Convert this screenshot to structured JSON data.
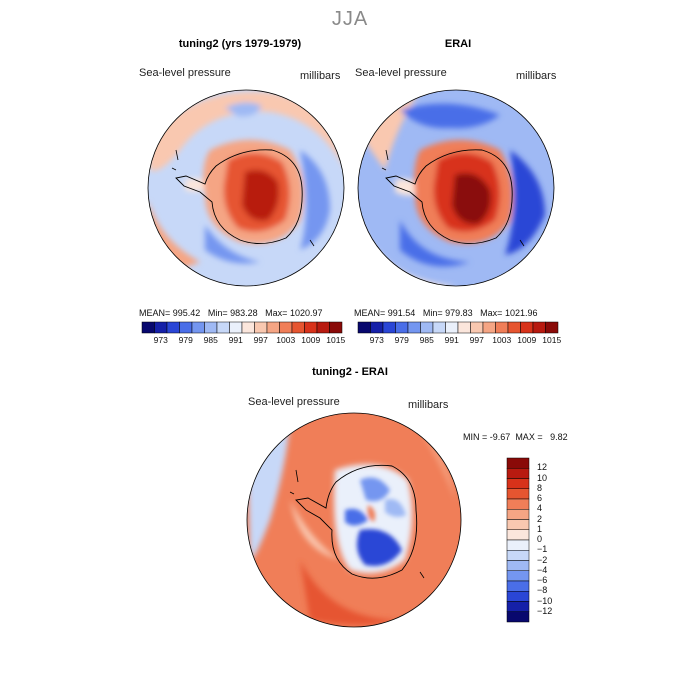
{
  "figure": {
    "season": "JJA",
    "units": "millibars",
    "variable": "Sea-level pressure"
  },
  "colors": {
    "scale": [
      "#08086e",
      "#1520a8",
      "#2a46d6",
      "#4a6ee8",
      "#7496f0",
      "#9fb9f4",
      "#c7d8f8",
      "#eaf0fb",
      "#fbe6dc",
      "#f9c8b0",
      "#f5a584",
      "#f07e58",
      "#e65530",
      "#d8321a",
      "#b81a10",
      "#8a0a08"
    ],
    "land_outline": "#000000"
  },
  "chart_data": [
    {
      "type": "heatmap",
      "title": "tuning2 (yrs 1979-1979)",
      "subtitle": "Sea-level pressure",
      "units": "millibars",
      "projection": "south-polar-stereographic",
      "stats": {
        "mean_label": "MEAN=",
        "mean": "995.42",
        "min_label": "Min=",
        "min": "983.28",
        "max_label": "Max=",
        "max": "1020.97"
      },
      "colorbar": {
        "orientation": "horizontal",
        "ticks": [
          "973",
          "979",
          "985",
          "991",
          "997",
          "1003",
          "1009",
          "1015"
        ]
      }
    },
    {
      "type": "heatmap",
      "title": "ERAI",
      "subtitle": "Sea-level pressure",
      "units": "millibars",
      "projection": "south-polar-stereographic",
      "stats": {
        "mean_label": "MEAN=",
        "mean": "991.54",
        "min_label": "Min=",
        "min": "979.83",
        "max_label": "Max=",
        "max": "1021.96"
      },
      "colorbar": {
        "orientation": "horizontal",
        "ticks": [
          "973",
          "979",
          "985",
          "991",
          "997",
          "1003",
          "1009",
          "1015"
        ]
      }
    },
    {
      "type": "heatmap",
      "title": "tuning2 - ERAI",
      "subtitle": "Sea-level pressure",
      "units": "millibars",
      "projection": "south-polar-stereographic",
      "stats": {
        "min_label": "MIN =",
        "min": "-9.67",
        "max_label": "MAX =",
        "max": "9.82"
      },
      "colorbar": {
        "orientation": "vertical",
        "ticks": [
          "12",
          "10",
          "8",
          "6",
          "4",
          "2",
          "1",
          "0",
          "−1",
          "−2",
          "−4",
          "−6",
          "−8",
          "−10",
          "−12"
        ]
      }
    }
  ]
}
